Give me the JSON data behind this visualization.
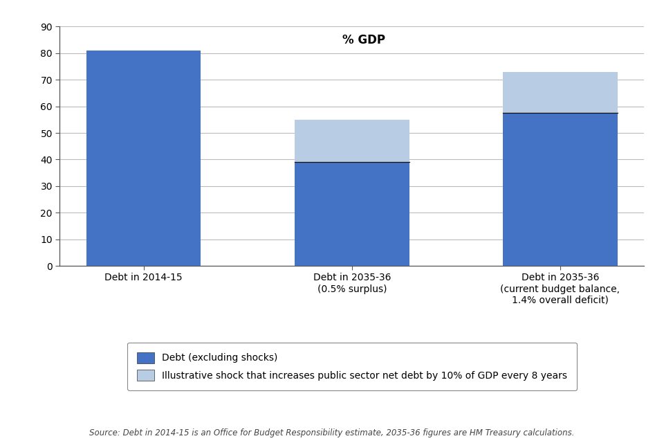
{
  "categories": [
    "Debt in 2014-15",
    "Debt in 2035-36\n(0.5% surplus)",
    "Debt in 2035-36\n(current budget balance,\n1.4% overall deficit)"
  ],
  "base_values": [
    81,
    39,
    57.5
  ],
  "shock_values": [
    0,
    16,
    15.5
  ],
  "bar_color": "#4472C4",
  "shock_color": "#B8CCE4",
  "bar_width": 0.55,
  "ylim": [
    0,
    90
  ],
  "yticks": [
    0,
    10,
    20,
    30,
    40,
    50,
    60,
    70,
    80,
    90
  ],
  "gdp_label": "% GDP",
  "legend_label1": "Debt (excluding shocks)",
  "legend_label2": "Illustrative shock that increases public sector net debt by 10% of GDP every 8 years",
  "source_text": "Source: Debt in 2014-15 is an Office for Budget Responsibility estimate, 2035-36 figures are HM Treasury calculations.",
  "background_color": "#FFFFFF",
  "grid_color": "#BBBBBB",
  "spine_color": "#555555",
  "title_fontsize": 12,
  "tick_fontsize": 10,
  "xtick_fontsize": 10,
  "legend_fontsize": 10,
  "source_fontsize": 8.5
}
